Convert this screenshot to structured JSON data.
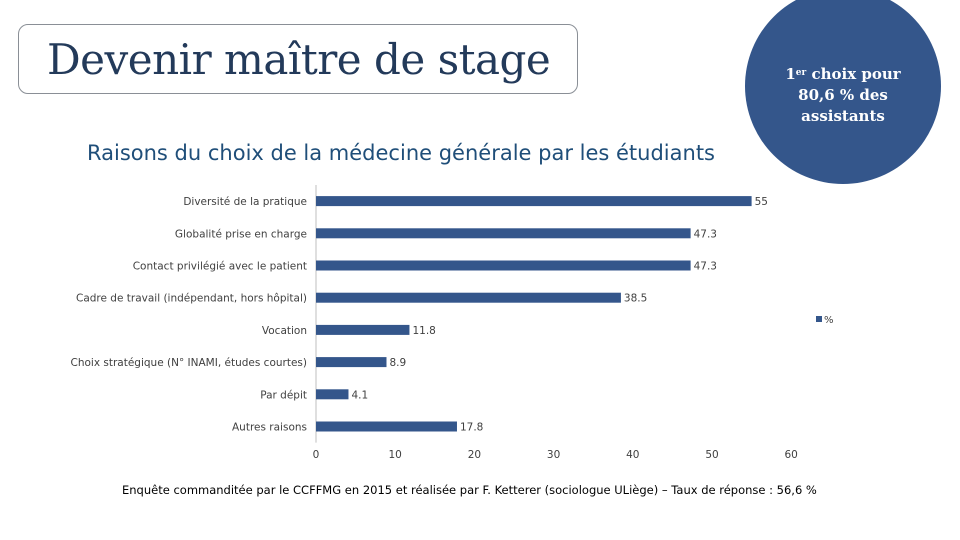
{
  "slide": {
    "title": "Devenir maître de stage",
    "circle": {
      "line1_prefix": "1",
      "line1_sup": "er",
      "line1_suffix": " choix pour",
      "line2": "80,6 % des",
      "line3": "assistants"
    },
    "footnote": "Enquête commanditée par le CCFFMG en 2015 et réalisée par F. Ketterer (sociologue ULiège) – Taux de réponse : 56,6 %"
  },
  "colors": {
    "bar": "#34568b",
    "circle": "#34568b",
    "title": "#233a5a",
    "chart_title": "#1f4e79"
  },
  "chart_data": {
    "type": "bar",
    "orientation": "horizontal",
    "title": "Raisons du choix de la médecine générale par les étudiants",
    "categories": [
      "Diversité de la pratique",
      "Globalité prise en charge",
      "Contact privilégié avec le patient",
      "Cadre de travail (indépendant, hors hôpital)",
      "Vocation",
      "Choix stratégique (N° INAMI, études courtes)",
      "Par dépit",
      "Autres raisons"
    ],
    "series": [
      {
        "name": "%",
        "values": [
          55,
          47.3,
          47.3,
          38.5,
          11.8,
          8.9,
          4.1,
          17.8
        ]
      }
    ],
    "x_ticks": [
      0,
      10,
      20,
      30,
      40,
      50,
      60
    ],
    "xlim": [
      0,
      60
    ],
    "xlabel": "",
    "ylabel": "",
    "grid": false,
    "legend": "right"
  }
}
